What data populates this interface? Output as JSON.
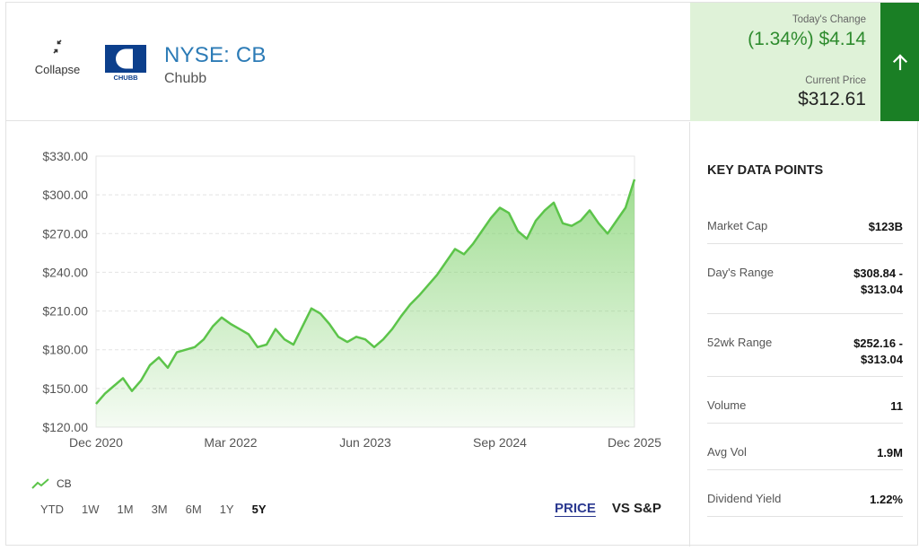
{
  "header": {
    "collapse_label": "Collapse",
    "logo_text": "CHUBB",
    "ticker": "NYSE: CB",
    "company": "Chubb",
    "todays_change_label": "Today's Change",
    "todays_change_value": "(1.34%) $4.14",
    "current_price_label": "Current Price",
    "current_price_value": "$312.61",
    "direction": "up"
  },
  "colors": {
    "accent_green": "#1a7f25",
    "change_green": "#2e8b2e",
    "line_green": "#5cc44a",
    "change_bg": "#dff2d8",
    "ticker_blue": "#2c7bb6",
    "link_blue": "#2b3990"
  },
  "chart_data": {
    "type": "area",
    "series": [
      {
        "name": "CB",
        "x": [
          "2020-12",
          "2021-01",
          "2021-02",
          "2021-03",
          "2021-04",
          "2021-05",
          "2021-06",
          "2021-07",
          "2021-08",
          "2021-09",
          "2021-10",
          "2021-11",
          "2021-12",
          "2022-01",
          "2022-02",
          "2022-03",
          "2022-04",
          "2022-05",
          "2022-06",
          "2022-07",
          "2022-08",
          "2022-09",
          "2022-10",
          "2022-11",
          "2022-12",
          "2023-01",
          "2023-02",
          "2023-03",
          "2023-04",
          "2023-05",
          "2023-06",
          "2023-07",
          "2023-08",
          "2023-09",
          "2023-10",
          "2023-11",
          "2023-12",
          "2024-01",
          "2024-02",
          "2024-03",
          "2024-04",
          "2024-05",
          "2024-06",
          "2024-07",
          "2024-08",
          "2024-09",
          "2024-10",
          "2024-11",
          "2024-12",
          "2025-01",
          "2025-02",
          "2025-03",
          "2025-04",
          "2025-05",
          "2025-06",
          "2025-07",
          "2025-08",
          "2025-09",
          "2025-10",
          "2025-11",
          "2025-12"
        ],
        "values": [
          138,
          146,
          152,
          158,
          148,
          156,
          168,
          174,
          166,
          178,
          180,
          182,
          188,
          198,
          205,
          200,
          196,
          192,
          182,
          184,
          196,
          188,
          184,
          198,
          212,
          208,
          200,
          190,
          186,
          190,
          188,
          182,
          188,
          196,
          206,
          215,
          222,
          230,
          238,
          248,
          258,
          254,
          262,
          272,
          282,
          290,
          286,
          272,
          266,
          280,
          288,
          294,
          278,
          276,
          280,
          288,
          278,
          270,
          280,
          290,
          312
        ]
      }
    ],
    "x_ticks": [
      "Dec 2020",
      "Mar 2022",
      "Jun 2023",
      "Sep 2024",
      "Dec 2025"
    ],
    "y_ticks": [
      "$120.00",
      "$150.00",
      "$180.00",
      "$210.00",
      "$240.00",
      "$270.00",
      "$300.00",
      "$330.00"
    ],
    "ylim": [
      120,
      330
    ],
    "grid": "horizontal dashed",
    "legend": "bottom-left",
    "title": "",
    "xlabel": "",
    "ylabel": ""
  },
  "legend": {
    "label": "CB"
  },
  "ranges": [
    "YTD",
    "1W",
    "1M",
    "3M",
    "6M",
    "1Y",
    "5Y"
  ],
  "active_range": "5Y",
  "modes": {
    "price": "PRICE",
    "vs": "VS S&P"
  },
  "keydata": {
    "title": "KEY DATA POINTS",
    "rows": [
      {
        "label": "Market Cap",
        "value": "$123B"
      },
      {
        "label": "Day's Range",
        "value": "$308.84 -",
        "value2": "$313.04"
      },
      {
        "label": "52wk Range",
        "value": "$252.16 -",
        "value2": "$313.04"
      },
      {
        "label": "Volume",
        "value": "11"
      },
      {
        "label": "Avg Vol",
        "value": "1.9M"
      },
      {
        "label": "Dividend Yield",
        "value": "1.22%"
      }
    ]
  }
}
